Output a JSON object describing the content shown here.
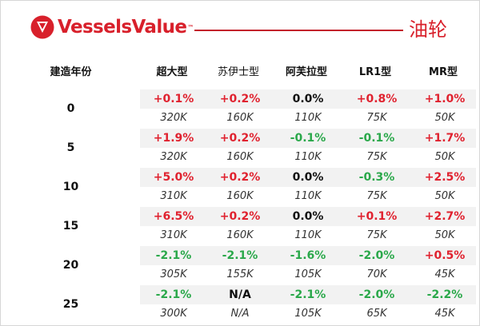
{
  "brand": {
    "name": "VesselsValue",
    "trademark": "™"
  },
  "title": "油轮",
  "header": {
    "age_label": "建造年份"
  },
  "columns": [
    "超大型",
    "苏伊士型",
    "阿芙拉型",
    "LR1型",
    "MR型"
  ],
  "rows": [
    {
      "age": "0",
      "changes": [
        {
          "v": "+0.1%",
          "c": "red"
        },
        {
          "v": "+0.2%",
          "c": "red"
        },
        {
          "v": "0.0%",
          "c": "black"
        },
        {
          "v": "+0.8%",
          "c": "red"
        },
        {
          "v": "+1.0%",
          "c": "red"
        }
      ],
      "prices": [
        "320K",
        "160K",
        "110K",
        "75K",
        "50K"
      ]
    },
    {
      "age": "5",
      "changes": [
        {
          "v": "+1.9%",
          "c": "red"
        },
        {
          "v": "+0.2%",
          "c": "red"
        },
        {
          "v": "-0.1%",
          "c": "green"
        },
        {
          "v": "-0.1%",
          "c": "green"
        },
        {
          "v": "+1.7%",
          "c": "red"
        }
      ],
      "prices": [
        "320K",
        "160K",
        "110K",
        "75K",
        "50K"
      ]
    },
    {
      "age": "10",
      "changes": [
        {
          "v": "+5.0%",
          "c": "red"
        },
        {
          "v": "+0.2%",
          "c": "red"
        },
        {
          "v": "0.0%",
          "c": "black"
        },
        {
          "v": "-0.3%",
          "c": "green"
        },
        {
          "v": "+2.5%",
          "c": "red"
        }
      ],
      "prices": [
        "310K",
        "160K",
        "110K",
        "75K",
        "50K"
      ]
    },
    {
      "age": "15",
      "changes": [
        {
          "v": "+6.5%",
          "c": "red"
        },
        {
          "v": "+0.2%",
          "c": "red"
        },
        {
          "v": "0.0%",
          "c": "black"
        },
        {
          "v": "+0.1%",
          "c": "red"
        },
        {
          "v": "+2.7%",
          "c": "red"
        }
      ],
      "prices": [
        "310K",
        "160K",
        "110K",
        "75K",
        "50K"
      ]
    },
    {
      "age": "20",
      "changes": [
        {
          "v": "-2.1%",
          "c": "green"
        },
        {
          "v": "-2.1%",
          "c": "green"
        },
        {
          "v": "-1.6%",
          "c": "green"
        },
        {
          "v": "-2.0%",
          "c": "green"
        },
        {
          "v": "+0.5%",
          "c": "red"
        }
      ],
      "prices": [
        "305K",
        "155K",
        "105K",
        "70K",
        "45K"
      ]
    },
    {
      "age": "25",
      "changes": [
        {
          "v": "-2.1%",
          "c": "green"
        },
        {
          "v": "N/A",
          "c": "black"
        },
        {
          "v": "-2.1%",
          "c": "green"
        },
        {
          "v": "-2.0%",
          "c": "green"
        },
        {
          "v": "-2.2%",
          "c": "green"
        }
      ],
      "prices": [
        "300K",
        "N/A",
        "105K",
        "65K",
        "45K"
      ]
    }
  ],
  "colors": {
    "brand_red": "#d8202b",
    "increase": "#e0222f",
    "decrease": "#2aa84a",
    "neutral": "#111111"
  },
  "icons": {
    "logo": "vesselsvalue-logo-icon"
  }
}
